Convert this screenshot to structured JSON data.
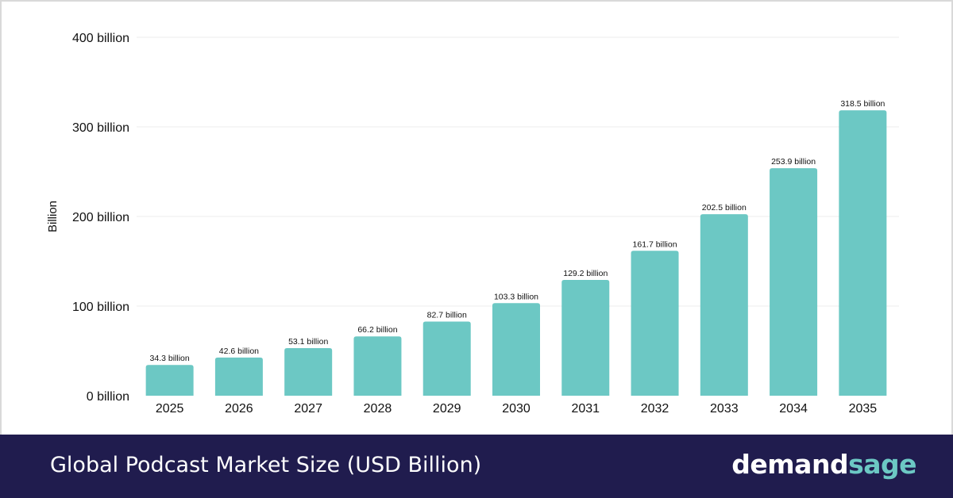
{
  "chart_data": {
    "type": "bar",
    "categories": [
      "2025",
      "2026",
      "2027",
      "2028",
      "2029",
      "2030",
      "2031",
      "2032",
      "2033",
      "2034",
      "2035"
    ],
    "values": [
      34.3,
      42.6,
      53.1,
      66.2,
      82.7,
      103.3,
      129.2,
      161.7,
      202.5,
      253.9,
      318.5
    ],
    "data_labels": [
      "34.3 billion",
      "42.6 billion",
      "53.1 billion",
      "66.2 billion",
      "82.7 billion",
      "103.3 billion",
      "129.2 billion",
      "161.7 billion",
      "202.5 billion",
      "253.9 billion",
      "318.5 billion"
    ],
    "yticks": [
      0,
      100,
      200,
      300,
      400
    ],
    "ytick_labels": [
      "0 billion",
      "100 billion",
      "200 billion",
      "300 billion",
      "400 billion"
    ],
    "ylim": [
      0,
      400
    ],
    "ylabel": "Billion",
    "xlabel": "",
    "grid": true,
    "bar_color": "#6cc8c4"
  },
  "footer": {
    "title": "Global Podcast Market Size (USD Billion)",
    "brand_part1": "demand",
    "brand_part2": "sage",
    "background": "#201c4e",
    "brand_accent": "#6cc8c4"
  }
}
